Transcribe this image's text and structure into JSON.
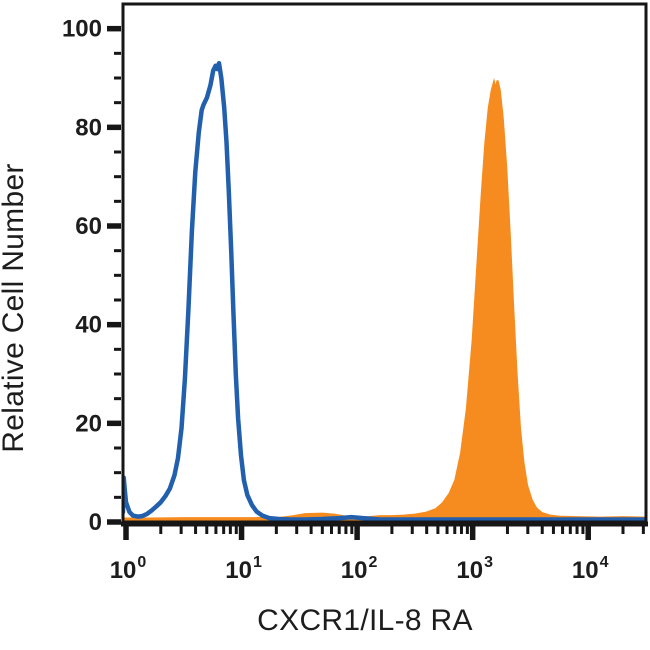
{
  "figure": {
    "background": "#ffffff",
    "frame_color": "#161616",
    "text_color": "#1d1d1d"
  },
  "chart_data": {
    "type": "area",
    "subtype": "flow-cytometry-overlay-histogram",
    "title": "",
    "xlabel": "CXCR1/IL-8 RA",
    "ylabel": "Relative Cell Number",
    "x_scale": "log10",
    "x_tick_base": "10",
    "x_tick_exponents": [
      0,
      1,
      2,
      3,
      4
    ],
    "x_range_log": [
      -0.026,
      4.5
    ],
    "y_ticks": [
      0,
      20,
      40,
      60,
      80,
      100
    ],
    "y_tick_labels": [
      "0",
      "20",
      "40",
      "60",
      "80",
      "100"
    ],
    "y_minor_step": 5,
    "ylim": [
      0,
      105
    ],
    "grid": false,
    "legend": null,
    "series": [
      {
        "name": "filled-histogram-stained",
        "style": "filled",
        "color": "#F68B1F",
        "stroke_width": 2,
        "peak": {
          "x_log": 3.215,
          "value": 89.5
        },
        "points": [
          [
            -0.026,
            0.7
          ],
          [
            0.2,
            0.7
          ],
          [
            0.5,
            0.8
          ],
          [
            0.8,
            0.8
          ],
          [
            1.1,
            0.8
          ],
          [
            1.35,
            0.9
          ],
          [
            1.45,
            1.2
          ],
          [
            1.55,
            1.6
          ],
          [
            1.7,
            1.7
          ],
          [
            1.8,
            1.5
          ],
          [
            1.9,
            1.1
          ],
          [
            2.0,
            0.9
          ],
          [
            2.1,
            1.0
          ],
          [
            2.2,
            1.2
          ],
          [
            2.3,
            1.2
          ],
          [
            2.4,
            1.3
          ],
          [
            2.5,
            1.5
          ],
          [
            2.6,
            1.9
          ],
          [
            2.68,
            2.6
          ],
          [
            2.74,
            3.8
          ],
          [
            2.8,
            5.8
          ],
          [
            2.85,
            8.5
          ],
          [
            2.9,
            14
          ],
          [
            2.95,
            23
          ],
          [
            3.0,
            37
          ],
          [
            3.04,
            52
          ],
          [
            3.08,
            67
          ],
          [
            3.11,
            77
          ],
          [
            3.14,
            84
          ],
          [
            3.165,
            87.5
          ],
          [
            3.185,
            89.2
          ],
          [
            3.2,
            87.8
          ],
          [
            3.215,
            89.5
          ],
          [
            3.235,
            87.5
          ],
          [
            3.26,
            82
          ],
          [
            3.29,
            72
          ],
          [
            3.32,
            59
          ],
          [
            3.35,
            44
          ],
          [
            3.38,
            30
          ],
          [
            3.41,
            19
          ],
          [
            3.44,
            12
          ],
          [
            3.47,
            7.5
          ],
          [
            3.51,
            4.5
          ],
          [
            3.55,
            2.8
          ],
          [
            3.6,
            1.8
          ],
          [
            3.67,
            1.3
          ],
          [
            3.75,
            1.1
          ],
          [
            3.9,
            1.0
          ],
          [
            4.1,
            0.9
          ],
          [
            4.3,
            1.0
          ],
          [
            4.5,
            0.9
          ]
        ]
      },
      {
        "name": "open-histogram-control",
        "style": "open",
        "color": "#2260AE",
        "stroke_width": 4.5,
        "peak": {
          "x_log": 0.805,
          "value": 93
        },
        "points": [
          [
            -0.026,
            2.0
          ],
          [
            -0.02,
            9.0
          ],
          [
            -0.01,
            6.5
          ],
          [
            0.0,
            4.0
          ],
          [
            0.03,
            2.0
          ],
          [
            0.06,
            1.3
          ],
          [
            0.1,
            1.1
          ],
          [
            0.14,
            1.2
          ],
          [
            0.18,
            1.6
          ],
          [
            0.22,
            2.3
          ],
          [
            0.26,
            3.1
          ],
          [
            0.3,
            4.0
          ],
          [
            0.34,
            5.2
          ],
          [
            0.38,
            6.8
          ],
          [
            0.42,
            9.5
          ],
          [
            0.45,
            13
          ],
          [
            0.48,
            19
          ],
          [
            0.51,
            29
          ],
          [
            0.54,
            43
          ],
          [
            0.57,
            59
          ],
          [
            0.6,
            71
          ],
          [
            0.63,
            79
          ],
          [
            0.655,
            83.5
          ],
          [
            0.67,
            84.5
          ],
          [
            0.7,
            86
          ],
          [
            0.73,
            88.5
          ],
          [
            0.755,
            91.5
          ],
          [
            0.775,
            92.5
          ],
          [
            0.79,
            91.8
          ],
          [
            0.805,
            93
          ],
          [
            0.825,
            90
          ],
          [
            0.85,
            84
          ],
          [
            0.87,
            77
          ],
          [
            0.89,
            67
          ],
          [
            0.91,
            55
          ],
          [
            0.93,
            42
          ],
          [
            0.95,
            30
          ],
          [
            0.97,
            21
          ],
          [
            0.995,
            13.5
          ],
          [
            1.02,
            8.5
          ],
          [
            1.05,
            5.5
          ],
          [
            1.09,
            3.4
          ],
          [
            1.13,
            2.1
          ],
          [
            1.18,
            1.3
          ],
          [
            1.24,
            0.8
          ],
          [
            1.32,
            0.6
          ],
          [
            1.42,
            0.5
          ],
          [
            1.55,
            0.5
          ],
          [
            1.7,
            0.6
          ],
          [
            1.85,
            0.8
          ],
          [
            1.95,
            1.0
          ],
          [
            2.05,
            0.8
          ],
          [
            2.2,
            0.5
          ],
          [
            2.4,
            0.5
          ],
          [
            2.6,
            0.5
          ],
          [
            2.8,
            0.5
          ],
          [
            3.0,
            0.5
          ],
          [
            3.2,
            0.5
          ],
          [
            3.4,
            0.5
          ],
          [
            3.6,
            0.5
          ],
          [
            3.8,
            0.5
          ],
          [
            4.0,
            0.5
          ],
          [
            4.2,
            0.5
          ],
          [
            4.35,
            0.5
          ],
          [
            4.5,
            0.5
          ]
        ]
      }
    ]
  }
}
